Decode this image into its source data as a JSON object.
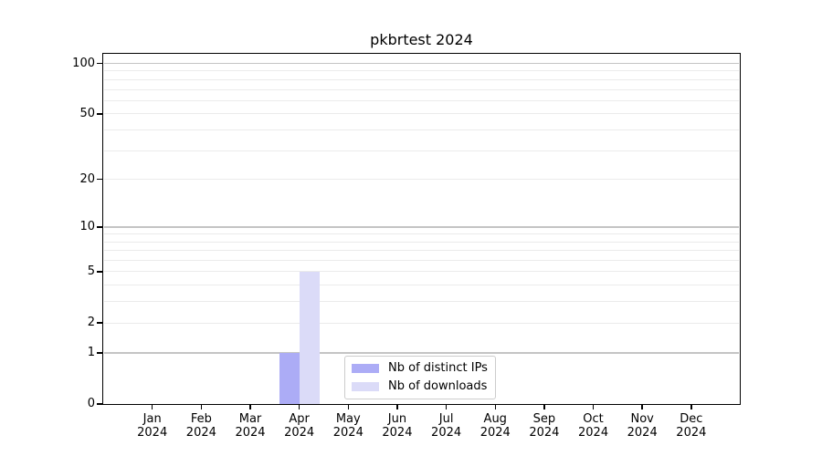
{
  "chart_data": {
    "type": "bar",
    "title": "pkbrtest 2024",
    "x_tick_months": [
      "Jan",
      "Feb",
      "Mar",
      "Apr",
      "May",
      "Jun",
      "Jul",
      "Aug",
      "Sep",
      "Oct",
      "Nov",
      "Dec"
    ],
    "x_tick_year": "2024",
    "series": [
      {
        "name": "Nb of distinct IPs",
        "color": "#acacf6",
        "values": [
          0,
          0,
          0,
          1,
          0,
          0,
          0,
          0,
          0,
          0,
          0,
          0
        ]
      },
      {
        "name": "Nb of downloads",
        "color": "#dbdbf8",
        "values": [
          0,
          0,
          0,
          5,
          0,
          0,
          0,
          0,
          0,
          0,
          0,
          0
        ]
      }
    ],
    "y_axis": {
      "scale": "log1p",
      "tick_values": [
        0,
        1,
        2,
        5,
        10,
        20,
        50,
        100
      ],
      "major_gridlines": [
        1,
        10,
        100
      ],
      "minor_gridlines": [
        2,
        3,
        4,
        6,
        7,
        8,
        9,
        20,
        30,
        40,
        50,
        60,
        70,
        80,
        90,
        5
      ],
      "ylim": [
        0,
        114
      ]
    },
    "legend": {
      "position": "lower center"
    },
    "colors": {
      "major_grid": "#c4c4c4",
      "minor_grid": "#ebebeb",
      "spine": "#000000",
      "background": "#ffffff"
    }
  }
}
